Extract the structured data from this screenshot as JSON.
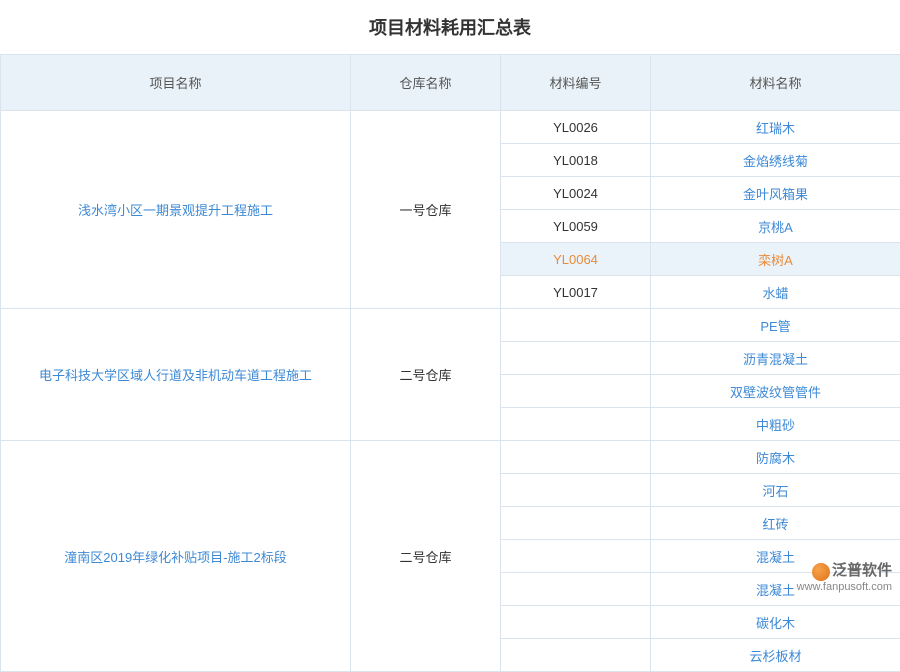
{
  "title": "项目材料耗用汇总表",
  "columns": [
    "项目名称",
    "仓库名称",
    "材料编号",
    "材料名称"
  ],
  "col_classes": [
    "col-proj",
    "col-wh",
    "col-code",
    "col-name"
  ],
  "header_bg": "#e9f2f8",
  "border_color": "#d9e4ee",
  "link_color": "#3d89d6",
  "highlight_bg": "#eaf3fa",
  "highlight_text": "#e88b3a",
  "groups": [
    {
      "project": "浅水湾小区一期景观提升工程施工",
      "warehouse": "一号仓库",
      "rows": [
        {
          "code": "YL0026",
          "name": "红瑞木"
        },
        {
          "code": "YL0018",
          "name": "金焰绣线菊"
        },
        {
          "code": "YL0024",
          "name": "金叶风箱果"
        },
        {
          "code": "YL0059",
          "name": "京桃A"
        },
        {
          "code": "YL0064",
          "name": "栾树A",
          "highlight": true
        },
        {
          "code": "YL0017",
          "name": "水蜡"
        }
      ]
    },
    {
      "project": "电子科技大学区域人行道及非机动车道工程施工",
      "warehouse": "二号仓库",
      "rows": [
        {
          "code": "",
          "name": "PE管"
        },
        {
          "code": "",
          "name": "沥青混凝土"
        },
        {
          "code": "",
          "name": "双壁波纹管管件"
        },
        {
          "code": "",
          "name": "中粗砂"
        }
      ]
    },
    {
      "project": "潼南区2019年绿化补贴项目-施工2标段",
      "warehouse": "二号仓库",
      "rows": [
        {
          "code": "",
          "name": "防腐木"
        },
        {
          "code": "",
          "name": "河石"
        },
        {
          "code": "",
          "name": "红砖"
        },
        {
          "code": "",
          "name": "混凝土"
        },
        {
          "code": "",
          "name": "混凝土"
        },
        {
          "code": "",
          "name": "碳化木"
        },
        {
          "code": "",
          "name": "云杉板材"
        }
      ]
    }
  ],
  "watermark": {
    "brand": "泛普软件",
    "url": "www.fanpusoft.com"
  }
}
